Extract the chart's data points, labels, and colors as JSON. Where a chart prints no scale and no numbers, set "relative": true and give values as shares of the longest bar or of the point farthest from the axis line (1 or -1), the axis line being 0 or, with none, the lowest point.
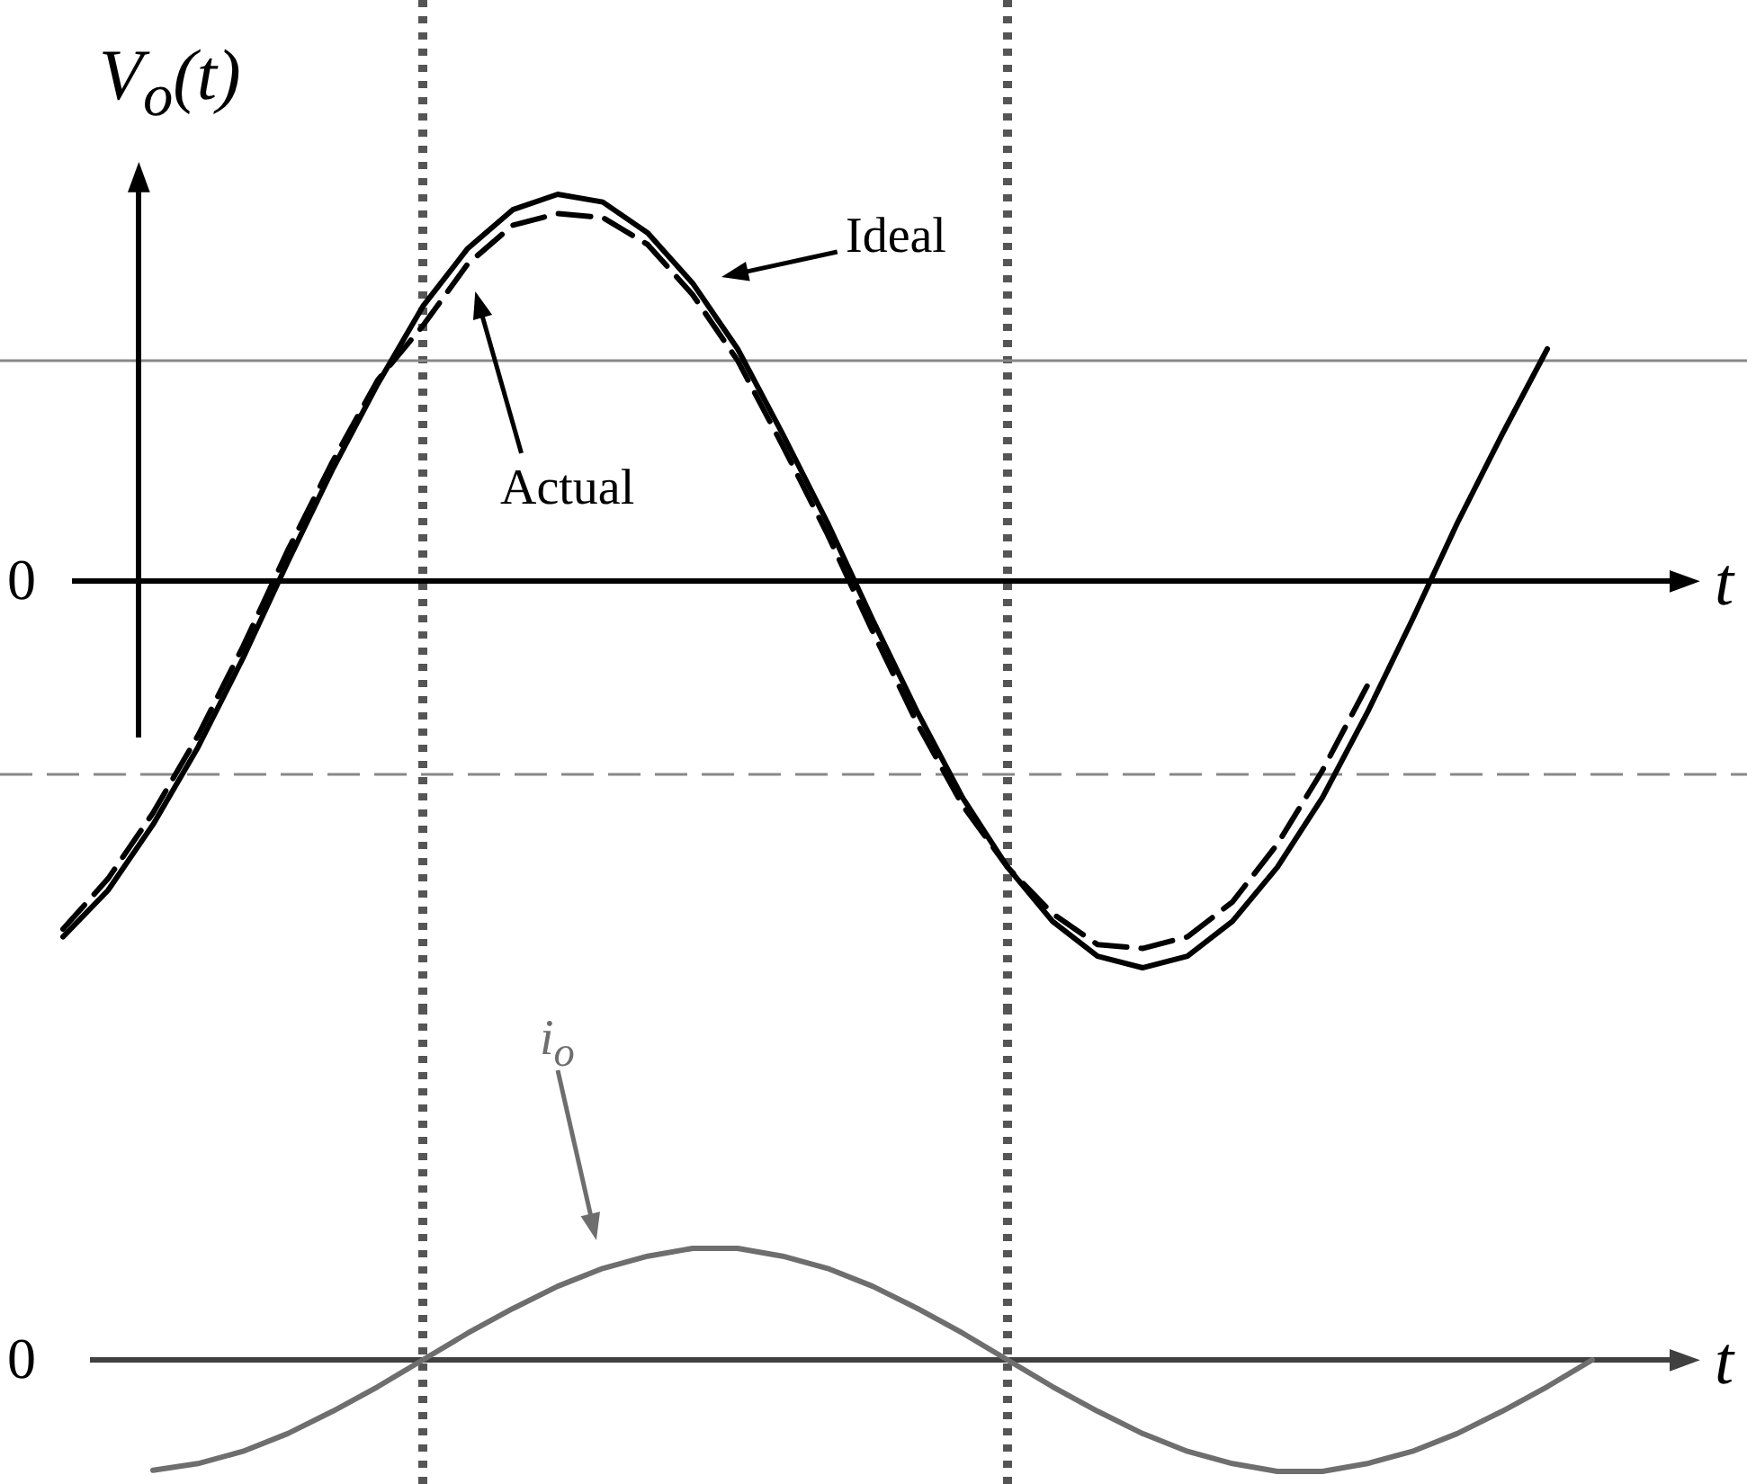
{
  "chart_data": [
    {
      "type": "line",
      "relative": true,
      "ylabel": "V$_{o}$(t)",
      "xlabel": "t",
      "annotations": [
        "0"
      ],
      "categories": [
        null,
        null,
        null,
        null,
        null,
        null,
        null,
        null,
        null,
        null,
        null,
        null,
        null,
        null,
        null,
        null,
        null,
        null,
        null,
        null,
        null,
        null,
        null,
        null,
        null,
        null,
        null,
        null,
        null,
        null,
        null,
        null,
        null,
        null
      ],
      "series": [
        {
          "name": "Ideal",
          "color": "#000000",
          "line_style": "solid",
          "values": [
            -0.92,
            -0.8,
            -0.63,
            -0.43,
            -0.2,
            0.05,
            0.29,
            0.51,
            0.71,
            0.86,
            0.96,
            1,
            0.98,
            0.9,
            0.77,
            0.6,
            0.38,
            0.15,
            -0.1,
            -0.34,
            -0.56,
            -0.74,
            -0.88,
            -0.97,
            -1,
            -0.97,
            -0.88,
            -0.74,
            -0.56,
            -0.34,
            -0.1,
            0.15,
            0.38,
            0.6
          ]
        },
        {
          "name": "Actual",
          "color": "#000000",
          "line_style": "dashed",
          "values": [
            -0.9,
            -0.77,
            -0.6,
            -0.4,
            -0.17,
            0.08,
            0.31,
            0.52,
            0.66,
            0.82,
            0.92,
            0.95,
            0.94,
            0.87,
            0.74,
            0.57,
            0.35,
            0.12,
            -0.13,
            -0.37,
            -0.58,
            -0.74,
            -0.86,
            -0.94,
            -0.95,
            -0.92,
            -0.83,
            -0.68,
            -0.49,
            -0.27,
            null,
            null,
            null,
            null
          ]
        }
      ],
      "ref_lines": [
        {
          "axis": "y",
          "value": 0.57,
          "color": "#888888",
          "line_style": "solid"
        },
        {
          "axis": "y",
          "value": -0.5,
          "color": "#888888",
          "line_style": "dashed"
        }
      ]
    },
    {
      "type": "line",
      "relative": true,
      "xlabel": "t",
      "annotations": [
        "0"
      ],
      "categories": [
        null,
        null,
        null,
        null,
        null,
        null,
        null,
        null,
        null,
        null,
        null,
        null,
        null,
        null,
        null,
        null,
        null,
        null,
        null,
        null,
        null,
        null,
        null,
        null,
        null,
        null,
        null,
        null,
        null,
        null,
        null,
        null,
        null
      ],
      "series": [
        {
          "name": "i$_{o}$",
          "color": "#6e6e6e",
          "line_style": "solid",
          "values": [
            -0.99,
            -0.93,
            -0.82,
            -0.66,
            -0.46,
            -0.24,
            0,
            0.24,
            0.46,
            0.66,
            0.82,
            0.93,
            1,
            1,
            0.93,
            0.82,
            0.66,
            0.46,
            0.24,
            0,
            -0.24,
            -0.46,
            -0.66,
            -0.82,
            -0.93,
            -1,
            -1,
            -0.93,
            -0.82,
            -0.66,
            -0.46,
            -0.24,
            0
          ]
        }
      ]
    }
  ]
}
